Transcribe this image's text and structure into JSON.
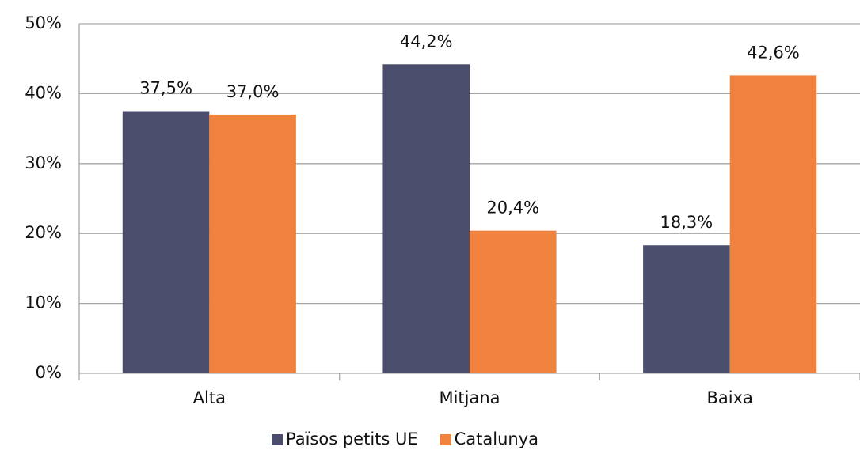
{
  "chart_data": {
    "type": "bar",
    "categories": [
      "Alta",
      "Mitjana",
      "Baixa"
    ],
    "series": [
      {
        "name": "Països petits UE",
        "color": "#4a4d6b",
        "values": [
          37.5,
          44.2,
          18.3
        ],
        "value_labels": [
          "37,5%",
          "44,2%",
          "18,3%"
        ]
      },
      {
        "name": "Catalunya",
        "color": "#f0823d",
        "values": [
          37.0,
          20.4,
          42.6
        ],
        "value_labels": [
          "37,0%",
          "20,4%",
          "42,6%"
        ]
      }
    ],
    "ylim": [
      0,
      50
    ],
    "yticks": [
      {
        "value": 0,
        "label": "0%"
      },
      {
        "value": 10,
        "label": "10%"
      },
      {
        "value": 20,
        "label": "20%"
      },
      {
        "value": 30,
        "label": "30%"
      },
      {
        "value": 40,
        "label": "40%"
      },
      {
        "value": 50,
        "label": "50%"
      }
    ],
    "grid": true,
    "legend": "bottom"
  }
}
